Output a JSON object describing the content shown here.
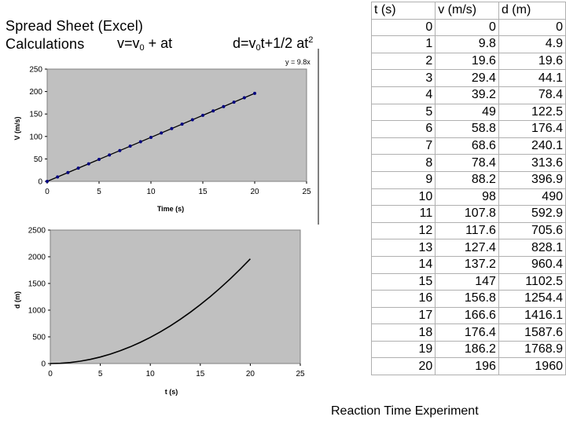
{
  "title": {
    "line1": "Spread Sheet (Excel)",
    "line2": "Calculations",
    "eq1": {
      "v": "v=v",
      "sub": "0",
      "rest": " + at"
    },
    "eq2": {
      "d": "d=v",
      "sub": "0",
      "mid": "t+1/2 at",
      "sup": "2"
    }
  },
  "chart_data": [
    {
      "type": "scatter",
      "title": "",
      "xlabel": "Time (s)",
      "ylabel": "V (m/s)",
      "xlim": [
        0,
        25
      ],
      "ylim": [
        0,
        250
      ],
      "xticks": [
        "0",
        "5",
        "10",
        "15",
        "20",
        "25"
      ],
      "yticks": [
        "0",
        "50",
        "100",
        "150",
        "200",
        "250"
      ],
      "trendline_label": "y = 9.8x",
      "x": [
        0,
        1,
        2,
        3,
        4,
        5,
        6,
        7,
        8,
        9,
        10,
        11,
        12,
        13,
        14,
        15,
        16,
        17,
        18,
        19,
        20
      ],
      "y": [
        0,
        9.8,
        19.6,
        29.4,
        39.2,
        49,
        58.8,
        68.6,
        78.4,
        88.2,
        98,
        107.8,
        117.6,
        127.4,
        137.2,
        147,
        156.8,
        166.6,
        176.4,
        186.2,
        196
      ],
      "colors": {
        "plot_bg": "#c0c0c0",
        "series": "#000080"
      }
    },
    {
      "type": "line",
      "title": "",
      "xlabel": "t (s)",
      "ylabel": "d (m)",
      "xlim": [
        0,
        25
      ],
      "ylim": [
        0,
        2500
      ],
      "xticks": [
        "0",
        "5",
        "10",
        "15",
        "20",
        "25"
      ],
      "yticks": [
        "0",
        "500",
        "1000",
        "1500",
        "2000",
        "2500"
      ],
      "x": [
        0,
        1,
        2,
        3,
        4,
        5,
        6,
        7,
        8,
        9,
        10,
        11,
        12,
        13,
        14,
        15,
        16,
        17,
        18,
        19,
        20
      ],
      "y": [
        0,
        4.9,
        19.6,
        44.1,
        78.4,
        122.5,
        176.4,
        240.1,
        313.6,
        396.9,
        490,
        592.9,
        705.6,
        828.1,
        960.4,
        1102.5,
        1254.4,
        1416.1,
        1587.6,
        1768.9,
        1960
      ],
      "colors": {
        "plot_bg": "#c0c0c0",
        "series": "#000000"
      }
    }
  ],
  "table": {
    "headers": [
      "t (s)",
      "v (m/s)",
      "d (m)"
    ],
    "rows": [
      [
        "0",
        "0",
        "0"
      ],
      [
        "1",
        "9.8",
        "4.9"
      ],
      [
        "2",
        "19.6",
        "19.6"
      ],
      [
        "3",
        "29.4",
        "44.1"
      ],
      [
        "4",
        "39.2",
        "78.4"
      ],
      [
        "5",
        "49",
        "122.5"
      ],
      [
        "6",
        "58.8",
        "176.4"
      ],
      [
        "7",
        "68.6",
        "240.1"
      ],
      [
        "8",
        "78.4",
        "313.6"
      ],
      [
        "9",
        "88.2",
        "396.9"
      ],
      [
        "10",
        "98",
        "490"
      ],
      [
        "11",
        "107.8",
        "592.9"
      ],
      [
        "12",
        "117.6",
        "705.6"
      ],
      [
        "13",
        "127.4",
        "828.1"
      ],
      [
        "14",
        "137.2",
        "960.4"
      ],
      [
        "15",
        "147",
        "1102.5"
      ],
      [
        "16",
        "156.8",
        "1254.4"
      ],
      [
        "17",
        "166.6",
        "1416.1"
      ],
      [
        "18",
        "176.4",
        "1587.6"
      ],
      [
        "19",
        "186.2",
        "1768.9"
      ],
      [
        "20",
        "196",
        "1960"
      ]
    ]
  },
  "footer": "Reaction Time Experiment"
}
